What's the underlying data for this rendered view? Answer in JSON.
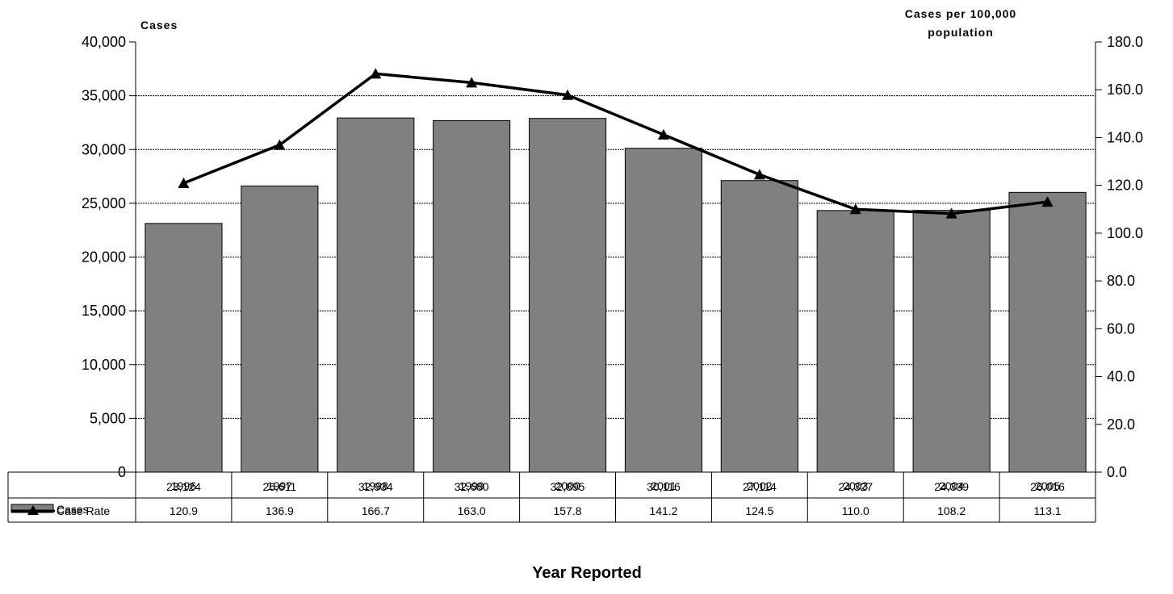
{
  "chart_data": {
    "type": "bar",
    "categories": [
      "1996",
      "1997",
      "1998",
      "1999",
      "2000",
      "2001",
      "2002",
      "2003",
      "2004",
      "2005"
    ],
    "series": [
      {
        "name": "Cases",
        "kind": "bar",
        "axis": "left",
        "values": [
          23124,
          26611,
          32934,
          32680,
          32895,
          30116,
          27114,
          24327,
          24339,
          26016
        ],
        "table_values": [
          "23,124",
          "26,611",
          "32,934",
          "32,680",
          "32,895",
          "30,116",
          "27,114",
          "24,327",
          "24,339",
          "26,016"
        ]
      },
      {
        "name": "Case Rate",
        "kind": "line",
        "axis": "right",
        "values": [
          120.9,
          136.9,
          166.7,
          163.0,
          157.8,
          141.2,
          124.5,
          110.0,
          108.2,
          113.1
        ],
        "table_values": [
          "120.9",
          "136.9",
          "166.7",
          "163.0",
          "157.8",
          "141.2",
          "124.5",
          "110.0",
          "108.2",
          "113.1"
        ]
      }
    ],
    "ylabel_left": "Cases",
    "ylabel_right_lines": [
      "Cases per 100,000",
      "population"
    ],
    "xlabel": "Year Reported",
    "ylim_left": [
      0,
      40000
    ],
    "ylim_right": [
      0,
      180
    ],
    "left_ticks": [
      "0",
      "5,000",
      "10,000",
      "15,000",
      "20,000",
      "25,000",
      "30,000",
      "35,000",
      "40,000"
    ],
    "right_ticks": [
      "0.0",
      "20.0",
      "40.0",
      "60.0",
      "80.0",
      "100.0",
      "120.0",
      "140.0",
      "160.0",
      "180.0"
    ],
    "grid": true,
    "legend_placement": "data-table-left",
    "colors": {
      "bar": "#808080",
      "line": "#000000",
      "grid": "#000000"
    }
  }
}
